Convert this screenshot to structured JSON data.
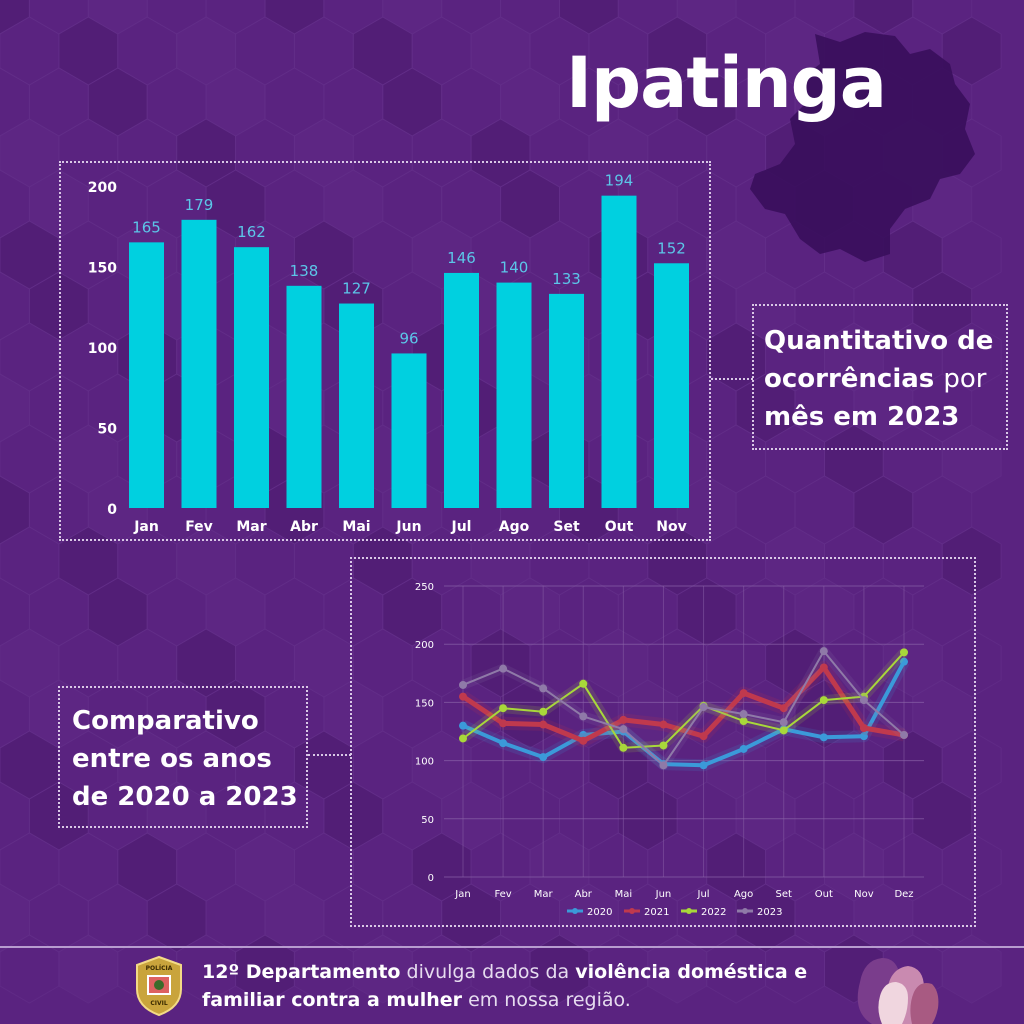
{
  "title": "Ipatinga",
  "colors": {
    "background": "#5a2380",
    "bar": "#00d0e0",
    "bar_label": "#5cc6e8",
    "line2020": "#3b9ad9",
    "line2021": "#c0394d",
    "line2022": "#a8d83a",
    "line2023": "#8f7aa8"
  },
  "bar_panel": {
    "label_bold1": "Quantitativo de",
    "label_bold2": "ocorrências",
    "label_light": "por",
    "label_bold3": "mês em 2023"
  },
  "line_panel": {
    "label_line1": "Comparativo",
    "label_line2": "entre os anos",
    "label_line3": "de 2020 a 2023"
  },
  "footer": {
    "part1_bold": "12º Departamento",
    "part2": " divulga dados da ",
    "part3_bold": "violência doméstica e familiar contra a mulher",
    "part4": " em nossa região.",
    "badge_text_top": "POLÍCIA",
    "badge_text_bottom": "CIVIL"
  },
  "chart_data": [
    {
      "type": "bar",
      "categories": [
        "Jan",
        "Fev",
        "Mar",
        "Abr",
        "Mai",
        "Jun",
        "Jul",
        "Ago",
        "Set",
        "Out",
        "Nov"
      ],
      "values": [
        165,
        179,
        162,
        138,
        127,
        96,
        146,
        140,
        133,
        194,
        152
      ],
      "yticks": [
        0,
        50,
        100,
        150,
        200
      ],
      "ylim": [
        0,
        200
      ],
      "data_labels": true,
      "grid": false
    },
    {
      "type": "line",
      "categories": [
        "Jan",
        "Fev",
        "Mar",
        "Abr",
        "Mai",
        "Jun",
        "Jul",
        "Ago",
        "Set",
        "Out",
        "Nov",
        "Dez"
      ],
      "yticks": [
        0,
        50,
        100,
        150,
        200,
        250
      ],
      "ylim": [
        0,
        250
      ],
      "grid": true,
      "legend": "bottom",
      "series": [
        {
          "name": "2020",
          "values": [
            130,
            115,
            103,
            122,
            125,
            97,
            96,
            110,
            127,
            120,
            121,
            185
          ]
        },
        {
          "name": "2021",
          "values": [
            155,
            132,
            131,
            117,
            135,
            131,
            121,
            158,
            145,
            180,
            128,
            122
          ]
        },
        {
          "name": "2022",
          "values": [
            119,
            145,
            142,
            166,
            111,
            113,
            147,
            134,
            126,
            152,
            155,
            193
          ]
        },
        {
          "name": "2023",
          "values": [
            165,
            179,
            162,
            138,
            127,
            96,
            146,
            140,
            133,
            194,
            152,
            122
          ]
        }
      ]
    }
  ]
}
